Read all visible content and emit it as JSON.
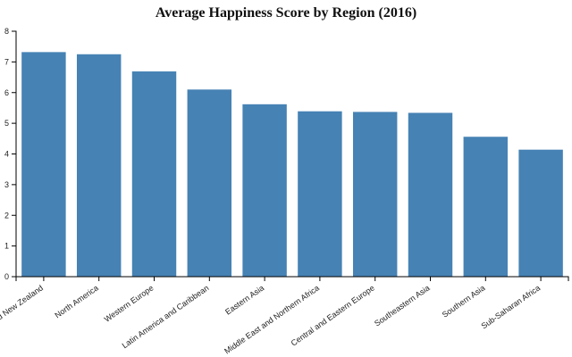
{
  "chart_data": {
    "type": "bar",
    "title": "Average Happiness Score by Region (2016)",
    "xlabel": "",
    "ylabel": "",
    "categories": [
      "Australia and New Zealand",
      "North America",
      "Western Europe",
      "Latin America and Caribbean",
      "Eastern Asia",
      "Middle East and Northern Africa",
      "Central and Eastern Europe",
      "Southeastern Asia",
      "Southern Asia",
      "Sub-Saharan Africa"
    ],
    "values": [
      7.32,
      7.25,
      6.69,
      6.1,
      5.62,
      5.39,
      5.37,
      5.34,
      4.56,
      4.14
    ],
    "ylim": [
      0,
      8
    ],
    "yticks": [
      0,
      1,
      2,
      3,
      4,
      5,
      6,
      7,
      8
    ],
    "grid": false,
    "colors": {
      "bar": "#4682b4"
    }
  }
}
